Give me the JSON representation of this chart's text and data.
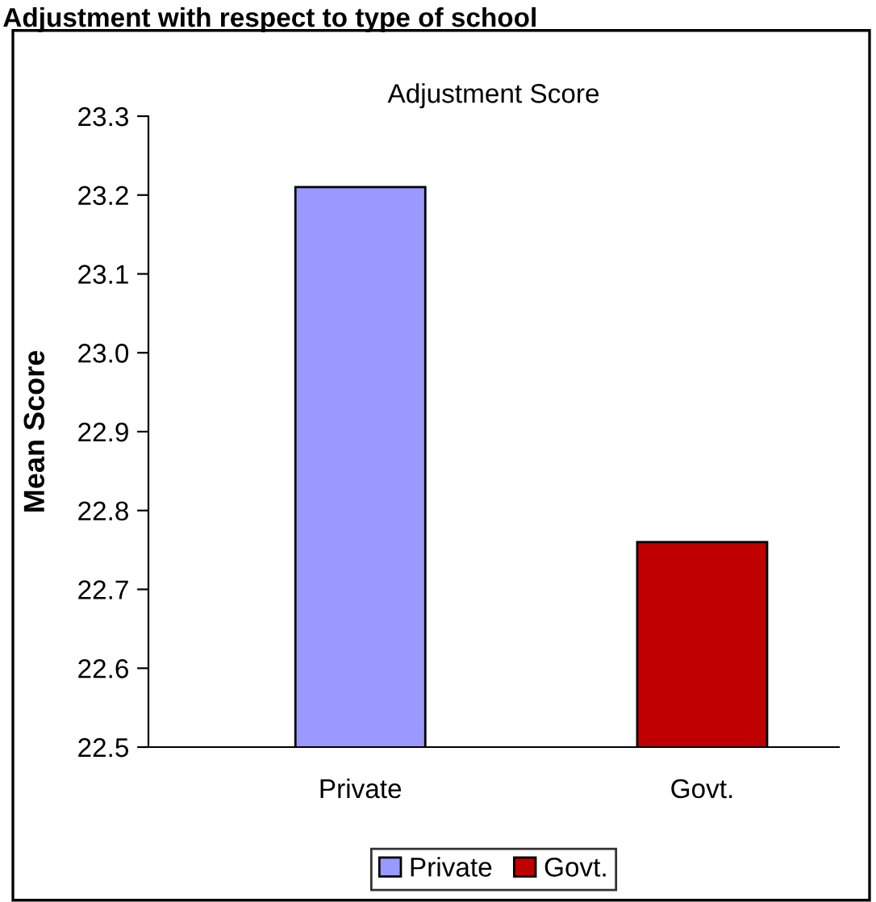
{
  "chart_data": {
    "type": "bar",
    "title": "Adjustment with respect to type of school",
    "subtitle": "Adjustment Score",
    "ylabel": "Mean Score",
    "categories": [
      "Private",
      "Govt."
    ],
    "series": [
      {
        "name": "Private",
        "color": "#9999ff",
        "values": [
          23.21,
          null
        ]
      },
      {
        "name": "Govt.",
        "color": "#c00000",
        "values": [
          null,
          22.76
        ]
      }
    ],
    "ylim": [
      22.5,
      23.3
    ],
    "yticks": [
      22.5,
      22.6,
      22.7,
      22.8,
      22.9,
      {
        "value": 23.0,
        "label": "23.0"
      },
      23.1,
      23.2,
      23.3
    ],
    "grid": false,
    "legend": "bottom"
  }
}
